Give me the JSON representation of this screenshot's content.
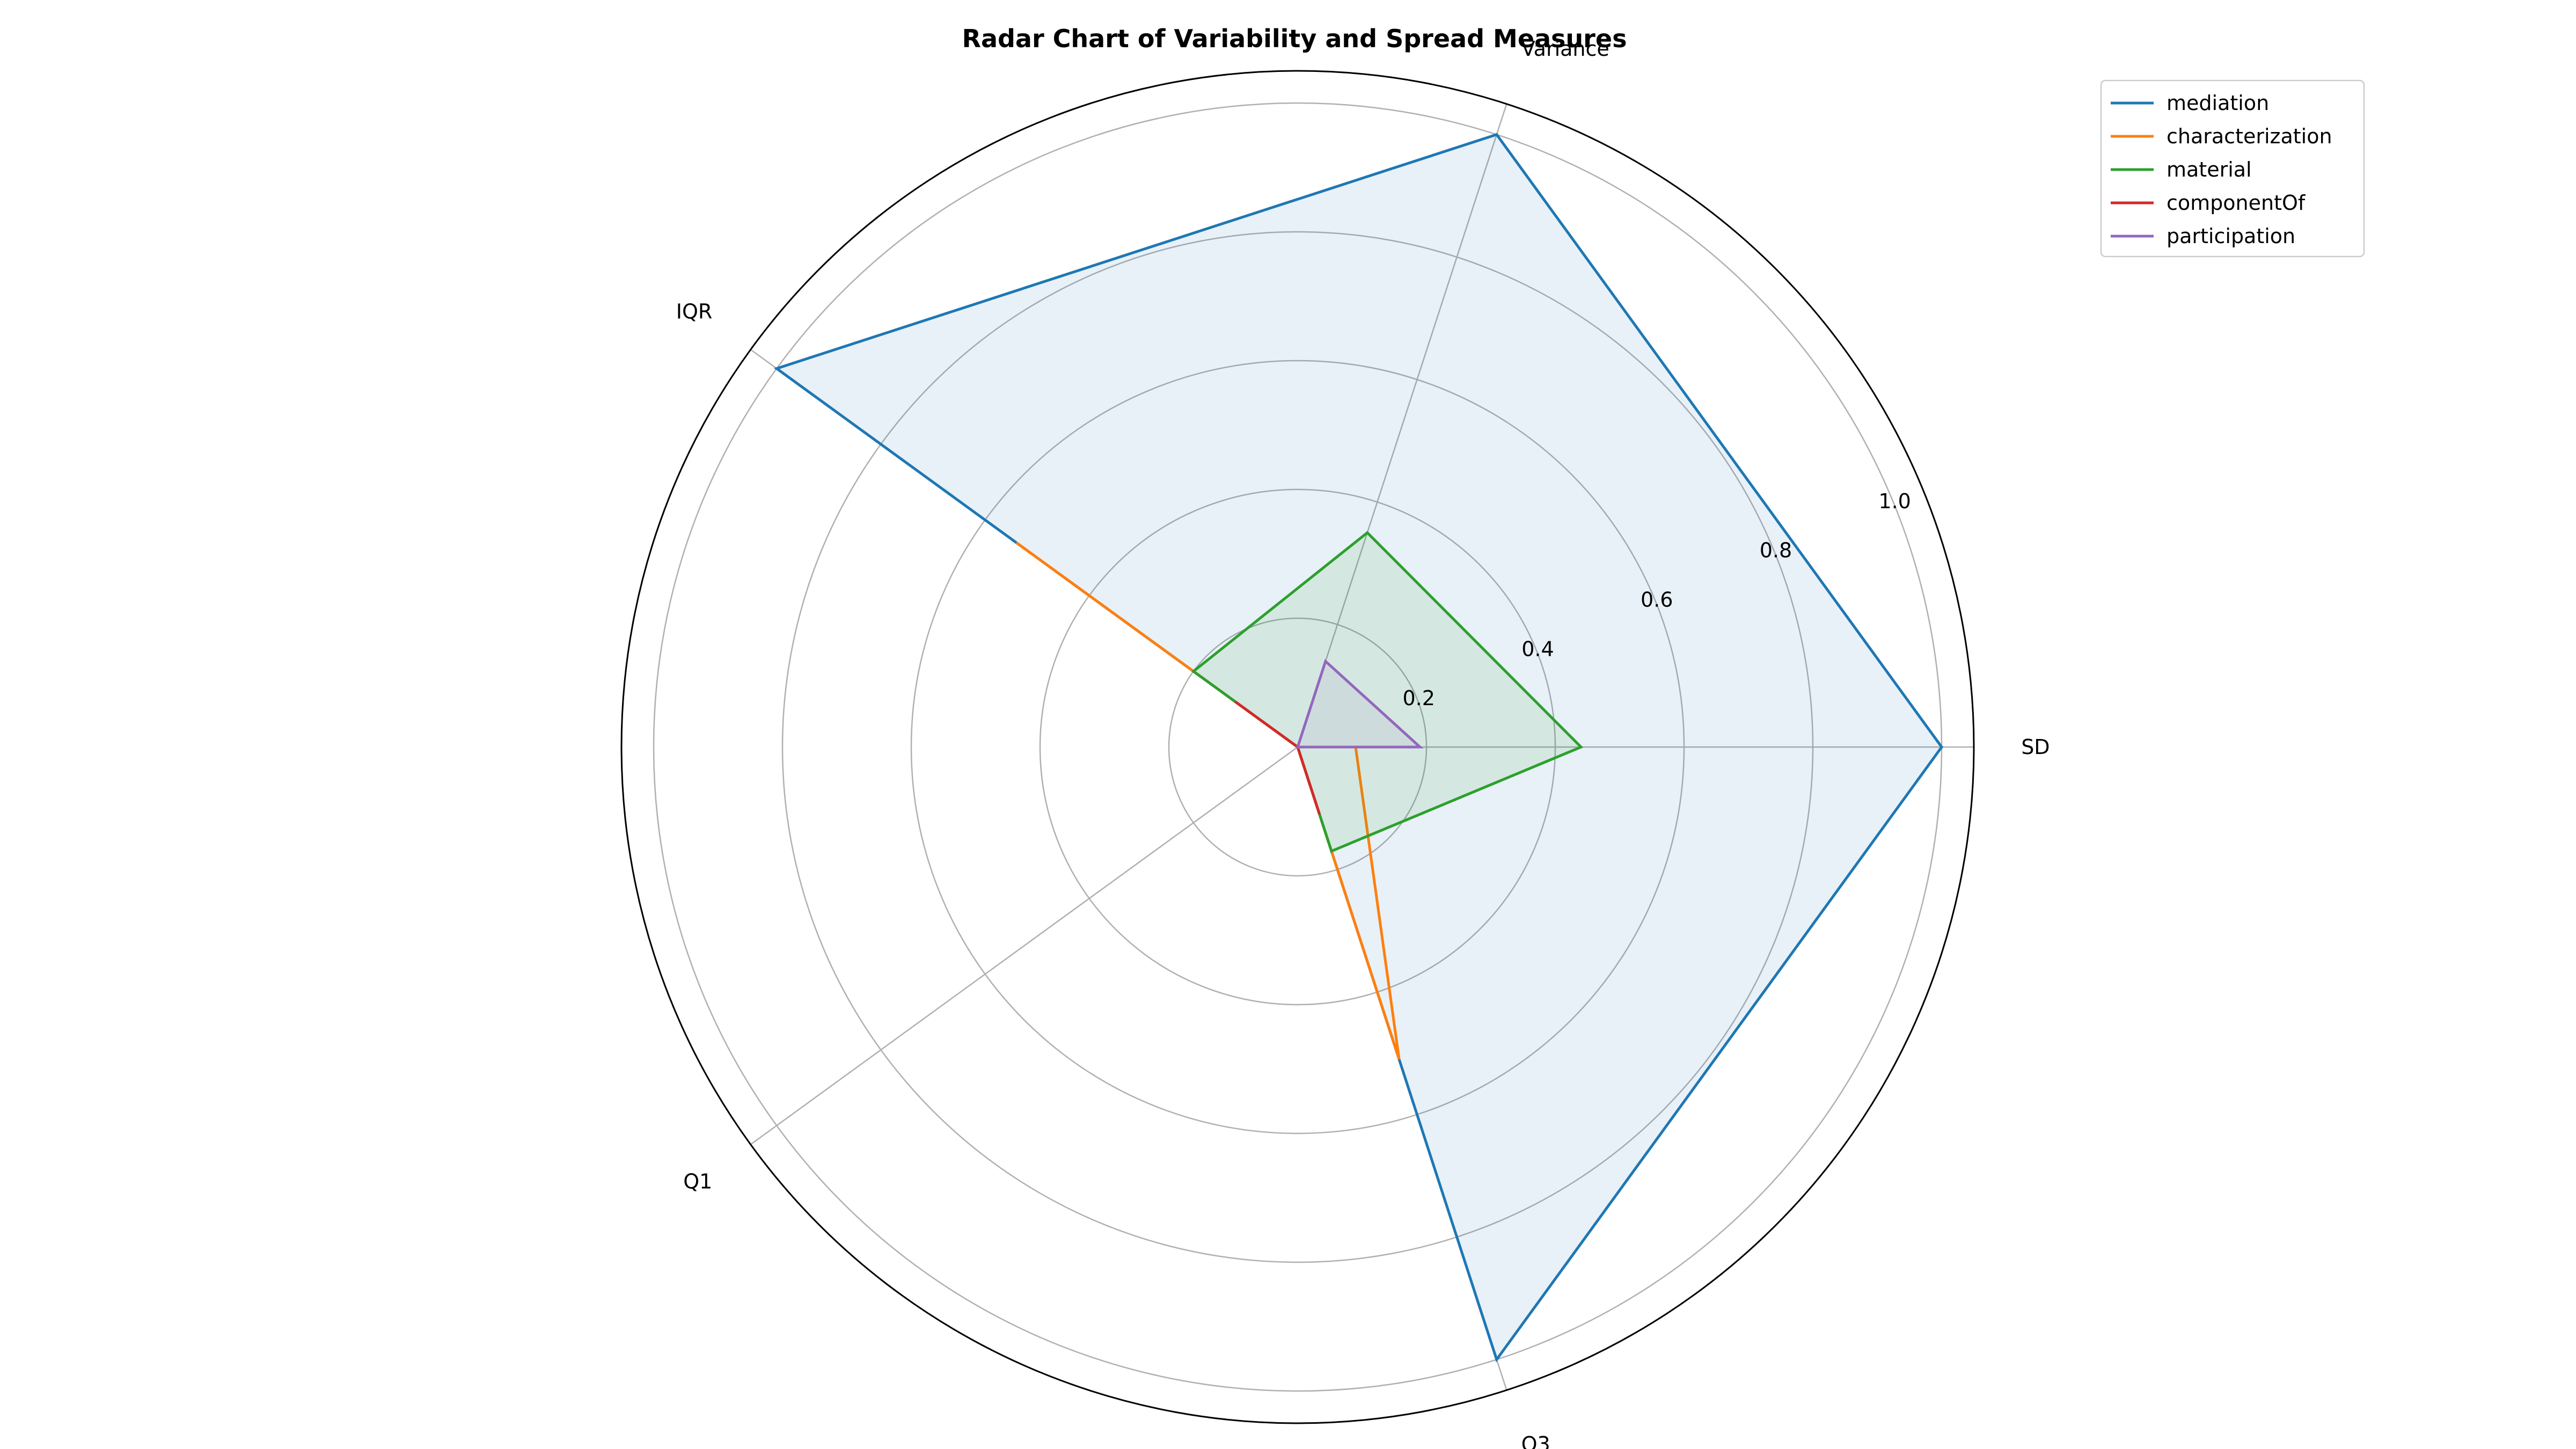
{
  "chart_data": {
    "type": "radar",
    "title": "Radar Chart of Variability and Spread Measures",
    "axes": [
      "SD",
      "Variance",
      "IQR",
      "Q1",
      "Q3"
    ],
    "radial_range": [
      0,
      1.05
    ],
    "radial_ticks": [
      0.2,
      0.4,
      0.6,
      0.8,
      1.0
    ],
    "radial_tick_labels": [
      "0.2",
      "0.4",
      "0.6",
      "0.8",
      "1.0"
    ],
    "grid": true,
    "legend_position": "top-right",
    "series": [
      {
        "name": "mediation",
        "color": "#1f77b4",
        "values": [
          1.0,
          1.0,
          1.0,
          0.0,
          1.0
        ],
        "fill": true
      },
      {
        "name": "characterization",
        "color": "#ff7f0e",
        "values": [
          0.09,
          0.0,
          0.54,
          0.0,
          0.51
        ],
        "fill": false
      },
      {
        "name": "material",
        "color": "#2ca02c",
        "values": [
          0.44,
          0.35,
          0.2,
          0.0,
          0.17
        ],
        "fill": true
      },
      {
        "name": "componentOf",
        "color": "#d62728",
        "values": [
          0.0,
          0.0,
          0.12,
          0.0,
          0.11
        ],
        "fill": false
      },
      {
        "name": "participation",
        "color": "#9467bd",
        "values": [
          0.19,
          0.14,
          0.0,
          0.0,
          0.0
        ],
        "fill": true
      }
    ]
  }
}
